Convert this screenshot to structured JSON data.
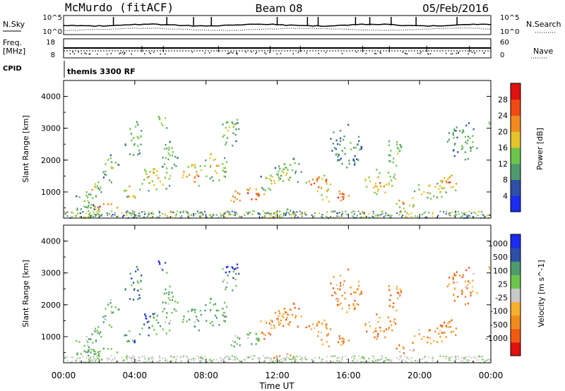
{
  "header": {
    "station": "McMurdo (fitACF)",
    "beam": "Beam 08",
    "date": "05/Feb/2016"
  },
  "strips": {
    "nsky_label": "N.Sky",
    "nsky_ticks": [
      "10^5",
      "10^0"
    ],
    "nsearch_label": "N.Search",
    "nsearch_ticks": [
      "10^5",
      "10^0"
    ],
    "freq_label_1": "Freq.",
    "freq_label_2": "[MHz]",
    "freq_ticks": [
      "18",
      "8"
    ],
    "nave_label": "Nave",
    "nave_ticks": [
      "60",
      "0"
    ],
    "cpid_label": "CPID",
    "cpid_value": "themis 3300 RF"
  },
  "time_axis": {
    "label": "Time UT",
    "ticks": [
      "00:00",
      "04:00",
      "08:00",
      "12:00",
      "16:00",
      "20:00",
      "00:00"
    ]
  },
  "colors": {
    "power": [
      "#1a2cf0",
      "#2d4fa8",
      "#4f9a6e",
      "#6cc54a",
      "#e6c32a",
      "#f28a1e",
      "#f04a12",
      "#e01010"
    ],
    "velocity": [
      "#e01010",
      "#f25a12",
      "#f28a1e",
      "#f5b02c",
      "#c8c8c8",
      "#6cc54a",
      "#4f9a6e",
      "#2d4fa8",
      "#1a2cf0"
    ]
  },
  "chart_data": [
    {
      "type": "heatmap",
      "name": "power",
      "xlabel": "Time UT",
      "ylabel": "Slant Range [km]",
      "x_ticks": [
        "00:00",
        "04:00",
        "08:00",
        "12:00",
        "16:00",
        "20:00",
        "00:00"
      ],
      "xlim_hours": [
        0,
        24
      ],
      "ylim": [
        180,
        4500
      ],
      "y_ticks": [
        1000,
        2000,
        3000,
        4000
      ],
      "colorbar_label": "Power [dB]",
      "colorbar_ticks": [
        4,
        8,
        12,
        16,
        20,
        24,
        28
      ],
      "colorbar_range": [
        0,
        32
      ]
    },
    {
      "type": "heatmap",
      "name": "velocity",
      "xlabel": "Time UT",
      "ylabel": "Slant Range [km]",
      "x_ticks": [
        "00:00",
        "04:00",
        "08:00",
        "12:00",
        "16:00",
        "20:00",
        "00:00"
      ],
      "xlim_hours": [
        0,
        24
      ],
      "ylim": [
        180,
        4500
      ],
      "y_ticks": [
        1000,
        2000,
        3000,
        4000
      ],
      "colorbar_label": "Velocity [m s^-1]",
      "colorbar_ticks": [
        "1000",
        "500",
        "100",
        "25",
        "-25",
        "-100",
        "-500",
        "-1000"
      ]
    }
  ]
}
